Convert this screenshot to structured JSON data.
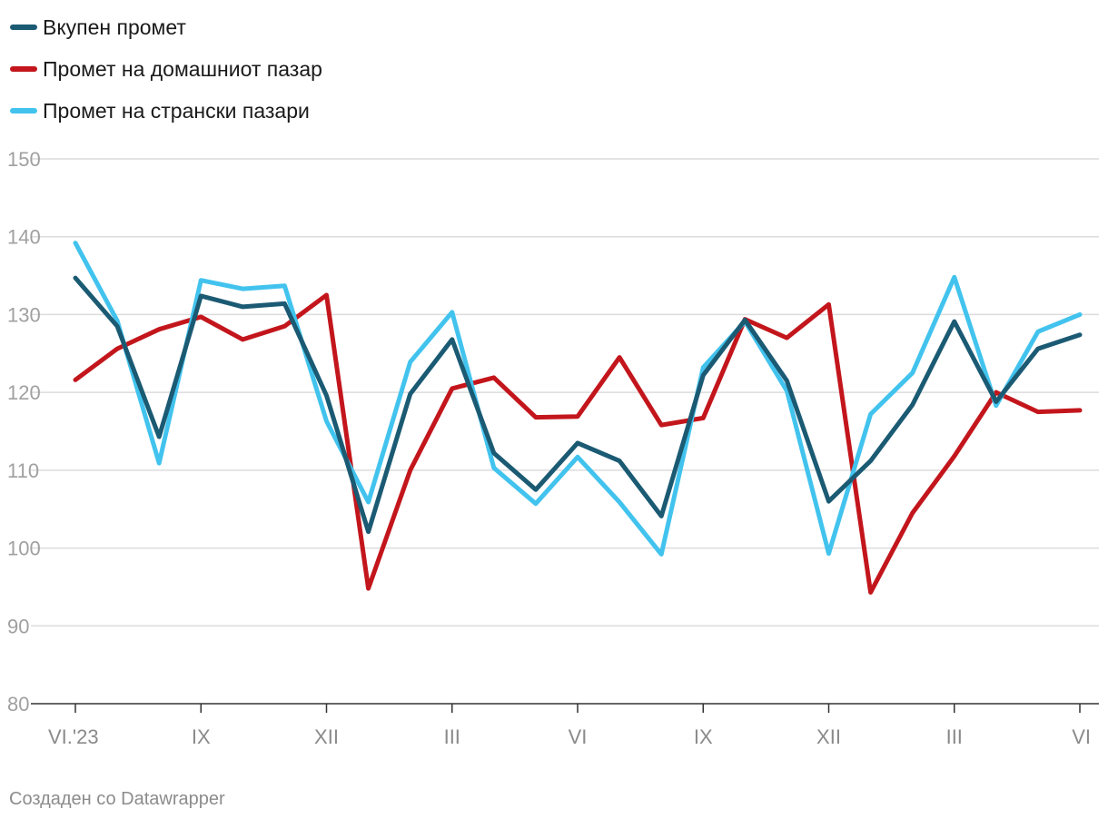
{
  "chart_data": {
    "type": "line",
    "y_range": [
      80,
      150
    ],
    "y_ticks": [
      80,
      90,
      100,
      110,
      120,
      130,
      140,
      150
    ],
    "grid": true,
    "legend_position": "top-left",
    "x_tick_labels": [
      {
        "index": 0,
        "label": "VI.'23"
      },
      {
        "index": 3,
        "label": "IX"
      },
      {
        "index": 6,
        "label": "XII"
      },
      {
        "index": 9,
        "label": "III"
      },
      {
        "index": 12,
        "label": "VI"
      },
      {
        "index": 15,
        "label": "IX"
      },
      {
        "index": 18,
        "label": "XII"
      },
      {
        "index": 21,
        "label": "III"
      },
      {
        "index": 24,
        "label": "VI"
      }
    ],
    "series": [
      {
        "name": "Вкупен промет",
        "color": "#1b5a73",
        "values": [
          134.7,
          128.5,
          114.3,
          132.4,
          131.0,
          131.4,
          119.6,
          102.1,
          119.8,
          126.8,
          112.2,
          107.5,
          113.5,
          111.2,
          104.1,
          122.2,
          129.3,
          121.5,
          106.0,
          111.2,
          118.4,
          129.1,
          118.8,
          125.6,
          127.4
        ]
      },
      {
        "name": "Промет на домашниот пазар",
        "color": "#c3161c",
        "values": [
          121.6,
          125.6,
          128.1,
          129.7,
          126.8,
          128.5,
          132.5,
          94.8,
          110.0,
          120.5,
          121.9,
          116.8,
          116.9,
          124.5,
          115.8,
          116.7,
          129.4,
          127.0,
          131.3,
          94.3,
          104.5,
          111.8,
          120.0,
          117.5,
          117.7
        ]
      },
      {
        "name": "Промет на странски пазари",
        "color": "#42c3ee",
        "values": [
          139.2,
          129.2,
          110.9,
          134.4,
          133.3,
          133.7,
          116.3,
          105.9,
          123.9,
          130.3,
          110.3,
          105.7,
          111.7,
          105.9,
          99.2,
          123.2,
          129.1,
          120.2,
          99.3,
          117.2,
          122.5,
          134.8,
          118.3,
          127.8,
          130.0
        ]
      }
    ]
  },
  "footer": {
    "credit": "Создаден со Datawrapper"
  }
}
